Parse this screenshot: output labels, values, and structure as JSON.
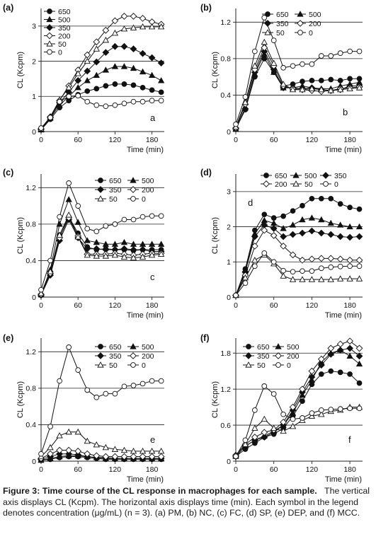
{
  "chart_data": [
    {
      "type": "line",
      "panel_label": "(a)",
      "inner_label": "a",
      "xlabel": "Time (min)",
      "ylabel": "CL (Kcpm)",
      "xlim": [
        0,
        200
      ],
      "ylim": [
        0,
        3.5
      ],
      "xticks": [
        0,
        60,
        120,
        180
      ],
      "xtick_labels": [
        "0",
        "60",
        "120",
        "180"
      ],
      "yticks": [
        0,
        1,
        2,
        3
      ],
      "ytick_labels": [
        "0",
        "1",
        "2",
        "3"
      ],
      "gridlines_y": [
        1,
        2,
        3
      ],
      "legend": {
        "placement": "top-left",
        "columns": 1
      },
      "x": [
        0,
        15,
        30,
        45,
        60,
        75,
        90,
        105,
        120,
        135,
        150,
        165,
        180,
        195
      ],
      "series": [
        {
          "name": "650",
          "marker": "circle-filled",
          "values": [
            0.05,
            0.35,
            0.68,
            0.88,
            1.05,
            1.15,
            1.22,
            1.3,
            1.35,
            1.35,
            1.32,
            1.25,
            1.18,
            1.12
          ]
        },
        {
          "name": "500",
          "marker": "triangle-filled",
          "values": [
            0.05,
            0.38,
            0.75,
            1.0,
            1.25,
            1.45,
            1.6,
            1.75,
            1.85,
            1.85,
            1.8,
            1.7,
            1.6,
            1.45
          ]
        },
        {
          "name": "350",
          "marker": "diamond-filled",
          "values": [
            0.06,
            0.4,
            0.82,
            1.12,
            1.45,
            1.72,
            1.98,
            2.25,
            2.42,
            2.42,
            2.35,
            2.22,
            2.1,
            1.95
          ]
        },
        {
          "name": "200",
          "marker": "diamond-open",
          "values": [
            0.08,
            0.42,
            0.88,
            1.3,
            1.75,
            2.18,
            2.55,
            2.88,
            3.15,
            3.28,
            3.28,
            3.22,
            3.12,
            3.05
          ]
        },
        {
          "name": "50",
          "marker": "triangle-open",
          "values": [
            0.08,
            0.42,
            0.9,
            1.25,
            1.65,
            2.0,
            2.35,
            2.6,
            2.8,
            2.92,
            2.95,
            2.98,
            2.98,
            2.98
          ]
        },
        {
          "name": "0",
          "marker": "circle-open",
          "values": [
            0.1,
            0.4,
            0.85,
            1.0,
            1.02,
            0.85,
            0.75,
            0.72,
            0.75,
            0.8,
            0.85,
            0.85,
            0.88,
            0.88
          ]
        }
      ]
    },
    {
      "type": "line",
      "panel_label": "(b)",
      "inner_label": "b",
      "xlabel": "Time (min)",
      "ylabel": "CL (Kcpm)",
      "xlim": [
        0,
        200
      ],
      "ylim": [
        0,
        1.35
      ],
      "xticks": [
        0,
        60,
        120,
        180
      ],
      "xtick_labels": [
        "0",
        "60",
        "120",
        "180"
      ],
      "yticks": [
        0,
        0.4,
        0.8,
        1.2
      ],
      "ytick_labels": [
        "0",
        "0.4",
        "0.8",
        "1.2"
      ],
      "gridlines_y": [
        0.4,
        0.8,
        1.2
      ],
      "legend": {
        "placement": "top-right",
        "columns": 2
      },
      "x": [
        0,
        15,
        30,
        45,
        60,
        75,
        90,
        105,
        120,
        135,
        150,
        165,
        180,
        195
      ],
      "series": [
        {
          "name": "650",
          "marker": "circle-filled",
          "values": [
            0.03,
            0.24,
            0.6,
            0.8,
            0.65,
            0.5,
            0.52,
            0.55,
            0.56,
            0.56,
            0.57,
            0.56,
            0.58,
            0.58
          ]
        },
        {
          "name": "500",
          "marker": "triangle-filled",
          "values": [
            0.03,
            0.26,
            0.63,
            0.85,
            0.65,
            0.48,
            0.48,
            0.5,
            0.48,
            0.47,
            0.47,
            0.5,
            0.52,
            0.54
          ]
        },
        {
          "name": "350",
          "marker": "diamond-filled",
          "values": [
            0.03,
            0.25,
            0.65,
            0.88,
            0.68,
            0.48,
            0.48,
            0.47,
            0.48,
            0.46,
            0.45,
            0.46,
            0.5,
            0.5
          ]
        },
        {
          "name": "200",
          "marker": "diamond-open",
          "values": [
            0.04,
            0.3,
            0.68,
            0.92,
            0.72,
            0.5,
            0.47,
            0.46,
            0.45,
            0.44,
            0.45,
            0.47,
            0.48,
            0.49
          ]
        },
        {
          "name": "50",
          "marker": "triangle-open",
          "values": [
            0.05,
            0.32,
            0.72,
            0.98,
            0.75,
            0.52,
            0.46,
            0.46,
            0.47,
            0.46,
            0.45,
            0.46,
            0.47,
            0.48
          ]
        },
        {
          "name": "0",
          "marker": "circle-open",
          "values": [
            0.08,
            0.38,
            0.88,
            1.25,
            1.0,
            0.7,
            0.72,
            0.74,
            0.74,
            0.83,
            0.83,
            0.86,
            0.88,
            0.88
          ]
        }
      ]
    },
    {
      "type": "line",
      "panel_label": "(c)",
      "inner_label": "c",
      "xlabel": "Time (min)",
      "ylabel": "CL (Kcpm)",
      "xlim": [
        0,
        200
      ],
      "ylim": [
        0,
        1.35
      ],
      "xticks": [
        0,
        60,
        120,
        180
      ],
      "xtick_labels": [
        "0",
        "60",
        "120",
        "180"
      ],
      "yticks": [
        0,
        0.4,
        0.8,
        1.2
      ],
      "ytick_labels": [
        "0",
        "0.4",
        "0.8",
        "1.2"
      ],
      "gridlines_y": [
        0.4,
        0.8,
        1.2
      ],
      "legend": {
        "placement": "top-right",
        "columns": 2
      },
      "x": [
        0,
        15,
        30,
        45,
        60,
        75,
        90,
        105,
        120,
        135,
        150,
        165,
        180,
        195
      ],
      "series": [
        {
          "name": "650",
          "marker": "circle-filled",
          "values": [
            0.02,
            0.25,
            0.68,
            0.88,
            0.7,
            0.55,
            0.52,
            0.53,
            0.52,
            0.52,
            0.51,
            0.52,
            0.52,
            0.52
          ]
        },
        {
          "name": "500",
          "marker": "triangle-filled",
          "values": [
            0.03,
            0.3,
            0.8,
            1.07,
            0.82,
            0.62,
            0.6,
            0.58,
            0.58,
            0.6,
            0.58,
            0.58,
            0.58,
            0.58
          ]
        },
        {
          "name": "350",
          "marker": "diamond-filled",
          "values": [
            0.02,
            0.24,
            0.62,
            0.85,
            0.65,
            0.53,
            0.53,
            0.52,
            0.52,
            0.53,
            0.52,
            0.52,
            0.5,
            0.5
          ]
        },
        {
          "name": "200",
          "marker": "diamond-open",
          "values": [
            0.03,
            0.26,
            0.65,
            0.87,
            0.67,
            0.47,
            0.47,
            0.47,
            0.48,
            0.47,
            0.46,
            0.47,
            0.48,
            0.48
          ]
        },
        {
          "name": "50",
          "marker": "triangle-open",
          "values": [
            0.04,
            0.28,
            0.68,
            0.9,
            0.66,
            0.46,
            0.45,
            0.45,
            0.46,
            0.44,
            0.43,
            0.44,
            0.46,
            0.47
          ]
        },
        {
          "name": "0",
          "marker": "circle-open",
          "values": [
            0.08,
            0.4,
            0.88,
            1.25,
            1.0,
            0.75,
            0.72,
            0.78,
            0.8,
            0.85,
            0.85,
            0.88,
            0.89,
            0.89
          ]
        }
      ]
    },
    {
      "type": "line",
      "panel_label": "(d)",
      "inner_label": "d",
      "xlabel": "Time (min)",
      "ylabel": "CL (Kcpm)",
      "xlim": [
        0,
        200
      ],
      "ylim": [
        0,
        3.5
      ],
      "xticks": [
        0,
        60,
        120,
        180
      ],
      "xtick_labels": [
        "0",
        "60",
        "120",
        "180"
      ],
      "yticks": [
        0,
        1,
        2,
        3
      ],
      "ytick_labels": [
        "0",
        "1",
        "2",
        "3"
      ],
      "gridlines_y": [
        1,
        2,
        3
      ],
      "legend": {
        "placement": "top",
        "columns": 3
      },
      "x": [
        0,
        15,
        30,
        45,
        60,
        75,
        90,
        105,
        120,
        135,
        150,
        165,
        180,
        195
      ],
      "series": [
        {
          "name": "650",
          "marker": "circle-filled",
          "values": [
            0.05,
            0.8,
            1.9,
            2.35,
            2.25,
            2.3,
            2.45,
            2.6,
            2.8,
            2.8,
            2.8,
            2.65,
            2.55,
            2.5
          ]
        },
        {
          "name": "500",
          "marker": "triangle-filled",
          "values": [
            0.05,
            0.75,
            1.8,
            2.18,
            2.1,
            1.95,
            2.05,
            2.2,
            2.25,
            2.2,
            2.1,
            2.05,
            2.0,
            2.0
          ]
        },
        {
          "name": "350",
          "marker": "diamond-filled",
          "values": [
            0.05,
            0.72,
            1.72,
            2.05,
            1.95,
            1.72,
            1.78,
            1.82,
            1.88,
            1.82,
            1.78,
            1.72,
            1.7,
            1.72
          ]
        },
        {
          "name": "200",
          "marker": "diamond-open",
          "values": [
            0.05,
            0.62,
            1.45,
            1.9,
            1.75,
            1.45,
            1.2,
            1.05,
            1.08,
            1.1,
            1.1,
            1.08,
            1.05,
            1.05
          ]
        },
        {
          "name": "50",
          "marker": "triangle-open",
          "values": [
            0.05,
            0.55,
            1.05,
            1.2,
            0.95,
            0.6,
            0.5,
            0.5,
            0.5,
            0.5,
            0.5,
            0.52,
            0.52,
            0.52
          ]
        },
        {
          "name": "0",
          "marker": "circle-open",
          "values": [
            0.05,
            0.4,
            0.88,
            1.25,
            1.0,
            0.75,
            0.72,
            0.74,
            0.74,
            0.82,
            0.85,
            0.87,
            0.88,
            0.88
          ]
        }
      ]
    },
    {
      "type": "line",
      "panel_label": "(e)",
      "inner_label": "e",
      "xlabel": "Time (min)",
      "ylabel": "CL (Kcpm)",
      "xlim": [
        0,
        200
      ],
      "ylim": [
        0,
        1.35
      ],
      "xticks": [
        0,
        60,
        120,
        180
      ],
      "xtick_labels": [
        "0",
        "60",
        "120",
        "180"
      ],
      "yticks": [
        0,
        0.4,
        0.8,
        1.2
      ],
      "ytick_labels": [
        "0",
        "0.4",
        "0.8",
        "1.2"
      ],
      "gridlines_y": [
        0.4,
        0.8,
        1.2
      ],
      "legend": {
        "placement": "top-right",
        "columns": 2
      },
      "x": [
        0,
        15,
        30,
        45,
        60,
        75,
        90,
        105,
        120,
        135,
        150,
        165,
        180,
        195
      ],
      "series": [
        {
          "name": "650",
          "marker": "circle-filled",
          "values": [
            0.01,
            0.02,
            0.04,
            0.05,
            0.05,
            0.04,
            0.03,
            0.02,
            0.02,
            0.02,
            0.02,
            0.02,
            0.02,
            0.02
          ]
        },
        {
          "name": "500",
          "marker": "triangle-filled",
          "values": [
            0.01,
            0.03,
            0.05,
            0.06,
            0.06,
            0.05,
            0.04,
            0.03,
            0.03,
            0.03,
            0.03,
            0.03,
            0.03,
            0.03
          ]
        },
        {
          "name": "350",
          "marker": "diamond-filled",
          "values": [
            0.02,
            0.05,
            0.08,
            0.08,
            0.07,
            0.05,
            0.04,
            0.04,
            0.03,
            0.03,
            0.03,
            0.03,
            0.03,
            0.03
          ]
        },
        {
          "name": "200",
          "marker": "diamond-open",
          "values": [
            0.03,
            0.08,
            0.12,
            0.12,
            0.11,
            0.08,
            0.06,
            0.05,
            0.05,
            0.05,
            0.05,
            0.05,
            0.05,
            0.05
          ]
        },
        {
          "name": "50",
          "marker": "triangle-open",
          "values": [
            0.05,
            0.15,
            0.28,
            0.32,
            0.32,
            0.22,
            0.18,
            0.15,
            0.13,
            0.12,
            0.11,
            0.11,
            0.11,
            0.11
          ]
        },
        {
          "name": "0",
          "marker": "circle-open",
          "values": [
            0.08,
            0.38,
            0.88,
            1.25,
            1.0,
            0.78,
            0.7,
            0.74,
            0.74,
            0.82,
            0.83,
            0.85,
            0.88,
            0.88
          ]
        }
      ]
    },
    {
      "type": "line",
      "panel_label": "(f)",
      "inner_label": "f",
      "xlabel": "Time (min)",
      "ylabel": "CL (Kcpm)",
      "xlim": [
        0,
        200
      ],
      "ylim": [
        0,
        2.05
      ],
      "xticks": [
        0,
        60,
        120,
        180
      ],
      "xtick_labels": [
        "0",
        "60",
        "120",
        "180"
      ],
      "yticks": [
        0,
        0.6,
        1.2,
        1.8
      ],
      "ytick_labels": [
        "0",
        "0.6",
        "1.2",
        "1.8"
      ],
      "gridlines_y": [
        0.6,
        1.2,
        1.8
      ],
      "legend": {
        "placement": "top-left",
        "columns": 2
      },
      "x": [
        0,
        15,
        30,
        45,
        60,
        75,
        90,
        105,
        120,
        135,
        150,
        165,
        180,
        195
      ],
      "series": [
        {
          "name": "650",
          "marker": "circle-filled",
          "values": [
            0.08,
            0.2,
            0.3,
            0.4,
            0.45,
            0.55,
            0.75,
            1.0,
            1.28,
            1.45,
            1.5,
            1.48,
            1.45,
            1.3
          ]
        },
        {
          "name": "500",
          "marker": "triangle-filled",
          "values": [
            0.08,
            0.25,
            0.35,
            0.42,
            0.5,
            0.6,
            0.8,
            1.1,
            1.35,
            1.65,
            1.8,
            1.85,
            1.75,
            1.62
          ]
        },
        {
          "name": "350",
          "marker": "diamond-filled",
          "values": [
            0.08,
            0.25,
            0.35,
            0.4,
            0.48,
            0.6,
            0.85,
            1.15,
            1.4,
            1.6,
            1.78,
            1.85,
            1.88,
            1.75
          ]
        },
        {
          "name": "200",
          "marker": "diamond-open",
          "values": [
            0.1,
            0.28,
            0.4,
            0.48,
            0.52,
            0.65,
            0.9,
            1.2,
            1.5,
            1.7,
            1.88,
            1.95,
            2.0,
            1.88
          ]
        },
        {
          "name": "50",
          "marker": "triangle-open",
          "values": [
            0.1,
            0.28,
            0.55,
            0.7,
            0.55,
            0.5,
            0.58,
            0.68,
            0.75,
            0.78,
            0.83,
            0.85,
            0.9,
            0.9
          ]
        },
        {
          "name": "0",
          "marker": "circle-open",
          "values": [
            0.08,
            0.35,
            0.85,
            1.25,
            1.12,
            0.78,
            0.7,
            0.72,
            0.8,
            0.85,
            0.86,
            0.87,
            0.88,
            0.88
          ]
        }
      ]
    }
  ],
  "caption": {
    "lead": "Figure 3: Time course of the CL response in macrophages for each sample.",
    "body": "The vertical axis displays CL (Kcpm). The horizontal axis displays time (min). Each symbol in the legend denotes concentration (μg/mL) (n = 3). (a) PM, (b) NC, (c) FC, (d) SP, (e) DEP, and (f) MCC."
  }
}
